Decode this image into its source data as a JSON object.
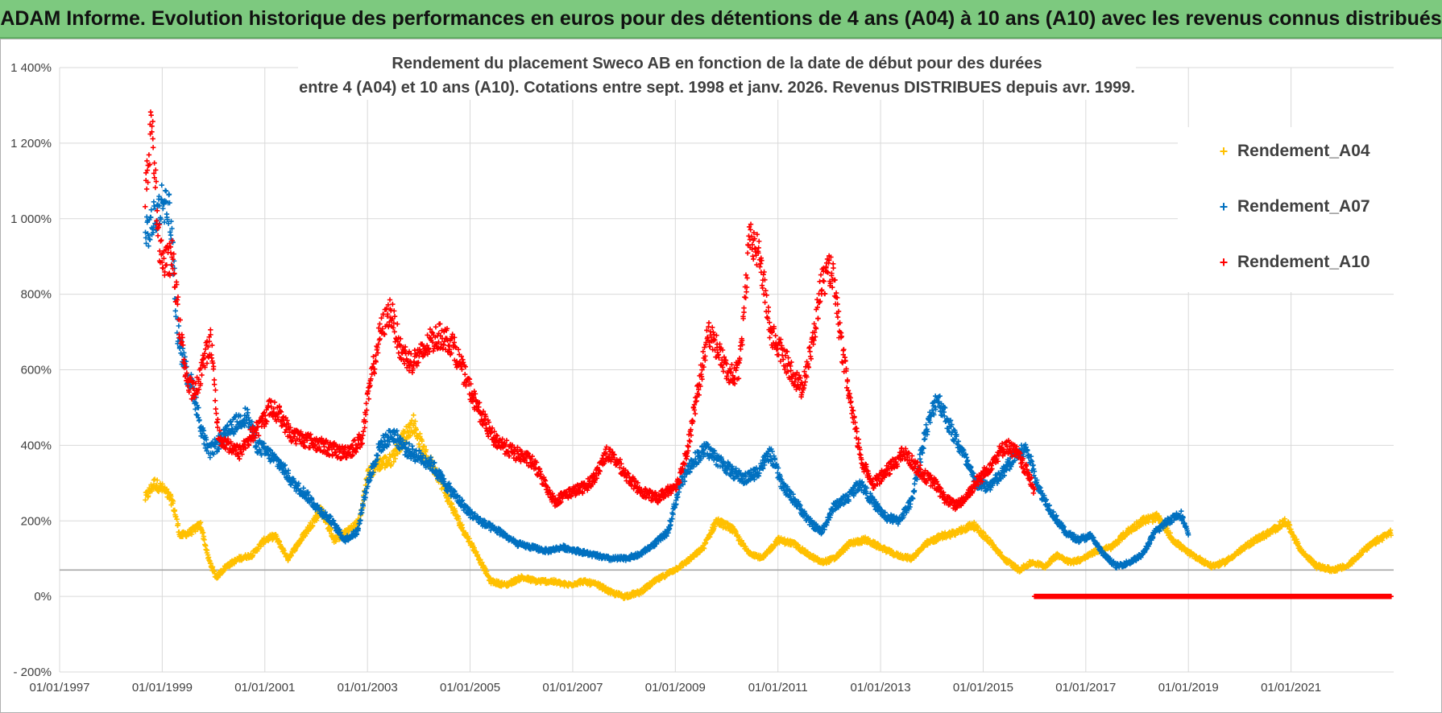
{
  "banner": {
    "title": "ADAM Informe. Evolution historique des performances en euros pour des détentions de 4 ans (A04) à 10 ans (A10) avec les revenus connus distribués"
  },
  "chart_data": {
    "type": "scatter",
    "title_line1": "Rendement du placement Sweco AB en fonction de la date de début pour des durées",
    "title_line2": "entre 4 (A04) et 10 ans (A10).  Cotations entre sept. 1998 et janv. 2026. Revenus DISTRIBUES depuis avr. 1999.",
    "xlabel": "",
    "ylabel": "",
    "xlim": [
      1997.0,
      2023.0
    ],
    "ylim": [
      -200,
      1400
    ],
    "y_ticks": [
      {
        "value": 1400,
        "label": "1 400%"
      },
      {
        "value": 1200,
        "label": "1 200%"
      },
      {
        "value": 1000,
        "label": "1 000%"
      },
      {
        "value": 800,
        "label": "800%"
      },
      {
        "value": 600,
        "label": "600%"
      },
      {
        "value": 400,
        "label": "400%"
      },
      {
        "value": 200,
        "label": "200%"
      },
      {
        "value": 0,
        "label": "0%"
      },
      {
        "value": -200,
        "label": "- 200%"
      }
    ],
    "x_ticks": [
      {
        "value": 1997.0,
        "label": "01/01/1997"
      },
      {
        "value": 1999.0,
        "label": "01/01/1999"
      },
      {
        "value": 2001.0,
        "label": "01/01/2001"
      },
      {
        "value": 2003.0,
        "label": "01/01/2003"
      },
      {
        "value": 2005.0,
        "label": "01/01/2005"
      },
      {
        "value": 2007.0,
        "label": "01/01/2007"
      },
      {
        "value": 2009.0,
        "label": "01/01/2009"
      },
      {
        "value": 2011.0,
        "label": "01/01/2011"
      },
      {
        "value": 2013.0,
        "label": "01/01/2013"
      },
      {
        "value": 2015.0,
        "label": "01/01/2015"
      },
      {
        "value": 2017.0,
        "label": "01/01/2017"
      },
      {
        "value": 2019.0,
        "label": "01/01/2019"
      },
      {
        "value": 2021.0,
        "label": "01/01/2021"
      }
    ],
    "reference_line": 70,
    "grid": true,
    "legend_position": "top-right",
    "series": [
      {
        "name": "Rendement_A04",
        "color": "#ffc000",
        "x": [
          1998.67,
          1998.85,
          1999.05,
          1999.2,
          1999.35,
          1999.55,
          1999.75,
          1999.9,
          2000.05,
          2000.25,
          2000.5,
          2000.75,
          2001.0,
          2001.2,
          2001.45,
          2001.7,
          2001.85,
          2002.1,
          2002.35,
          2002.6,
          2002.85,
          2003.0,
          2003.2,
          2003.45,
          2003.7,
          2003.9,
          2004.1,
          2004.35,
          2004.6,
          2004.85,
          2005.1,
          2005.4,
          2005.7,
          2006.0,
          2006.3,
          2006.6,
          2006.9,
          2007.2,
          2007.5,
          2007.75,
          2008.0,
          2008.3,
          2008.6,
          2008.85,
          2009.1,
          2009.3,
          2009.55,
          2009.8,
          2010.1,
          2010.4,
          2010.7,
          2011.0,
          2011.3,
          2011.6,
          2011.85,
          2012.1,
          2012.4,
          2012.7,
          2013.0,
          2013.3,
          2013.6,
          2013.9,
          2014.2,
          2014.5,
          2014.8,
          2015.1,
          2015.4,
          2015.7,
          2015.95,
          2016.2,
          2016.45,
          2016.7,
          2016.95,
          2017.2,
          2017.5,
          2017.8,
          2018.1,
          2018.4,
          2018.7,
          2018.95,
          2019.2,
          2019.45,
          2019.7,
          2020.0,
          2020.3,
          2020.6,
          2020.9,
          2021.2,
          2021.5,
          2021.8,
          2022.1,
          2022.4,
          2022.7,
          2022.95
        ],
        "y": [
          260,
          300,
          280,
          250,
          160,
          170,
          190,
          100,
          50,
          80,
          100,
          110,
          150,
          160,
          100,
          150,
          180,
          230,
          150,
          170,
          200,
          320,
          350,
          360,
          420,
          460,
          380,
          330,
          250,
          180,
          120,
          40,
          30,
          50,
          40,
          40,
          30,
          40,
          30,
          10,
          0,
          10,
          40,
          60,
          80,
          100,
          130,
          200,
          180,
          120,
          100,
          150,
          140,
          110,
          90,
          100,
          140,
          150,
          130,
          110,
          100,
          140,
          160,
          170,
          190,
          150,
          100,
          70,
          90,
          80,
          110,
          90,
          100,
          120,
          130,
          170,
          200,
          210,
          150,
          120,
          100,
          80,
          90,
          120,
          150,
          170,
          200,
          120,
          80,
          70,
          80,
          120,
          150,
          170
        ]
      },
      {
        "name": "Rendement_A07",
        "color": "#0070c0",
        "x": [
          1998.67,
          1998.85,
          1999.0,
          1999.15,
          1999.3,
          1999.45,
          1999.6,
          1999.75,
          1999.9,
          2000.05,
          2000.25,
          2000.45,
          2000.65,
          2000.85,
          2001.05,
          2001.3,
          2001.55,
          2001.8,
          2002.05,
          2002.3,
          2002.55,
          2002.8,
          2003.0,
          2003.25,
          2003.5,
          2003.75,
          2004.0,
          2004.25,
          2004.5,
          2004.75,
          2005.0,
          2005.3,
          2005.6,
          2005.9,
          2006.2,
          2006.5,
          2006.8,
          2007.1,
          2007.4,
          2007.7,
          2008.0,
          2008.3,
          2008.6,
          2008.85,
          2009.1,
          2009.35,
          2009.6,
          2009.85,
          2010.1,
          2010.35,
          2010.6,
          2010.85,
          2011.1,
          2011.35,
          2011.6,
          2011.85,
          2012.1,
          2012.35,
          2012.6,
          2012.85,
          2013.1,
          2013.35,
          2013.6,
          2013.85,
          2014.1,
          2014.35,
          2014.6,
          2014.85,
          2015.1,
          2015.35,
          2015.6,
          2015.85,
          2016.1,
          2016.35,
          2016.6,
          2016.85,
          2017.1,
          2017.35,
          2017.6,
          2017.85,
          2018.1,
          2018.35,
          2018.6,
          2018.85,
          2019.0
        ],
        "y": [
          950,
          1000,
          1050,
          1020,
          700,
          600,
          550,
          450,
          380,
          400,
          430,
          460,
          480,
          400,
          380,
          350,
          300,
          270,
          230,
          200,
          150,
          170,
          300,
          400,
          430,
          390,
          370,
          350,
          300,
          260,
          220,
          190,
          170,
          140,
          130,
          120,
          130,
          120,
          110,
          100,
          100,
          110,
          140,
          170,
          300,
          360,
          390,
          360,
          330,
          310,
          330,
          380,
          290,
          250,
          200,
          170,
          240,
          260,
          300,
          250,
          210,
          200,
          250,
          420,
          530,
          450,
          380,
          300,
          290,
          320,
          370,
          390,
          280,
          220,
          170,
          150,
          160,
          110,
          80,
          90,
          110,
          170,
          200,
          220,
          160
        ]
      },
      {
        "name": "Rendement_A10",
        "color": "#ff0000",
        "x": [
          1998.67,
          1998.8,
          1998.92,
          1999.05,
          1999.2,
          1999.35,
          1999.5,
          1999.65,
          1999.8,
          1999.95,
          2000.1,
          2000.3,
          2000.5,
          2000.7,
          2000.9,
          2001.1,
          2001.3,
          2001.5,
          2001.7,
          2001.9,
          2002.1,
          2002.3,
          2002.5,
          2002.7,
          2002.9,
          2003.05,
          2003.25,
          2003.45,
          2003.65,
          2003.85,
          2004.05,
          2004.25,
          2004.45,
          2004.65,
          2004.85,
          2005.05,
          2005.25,
          2005.45,
          2005.65,
          2005.85,
          2006.05,
          2006.25,
          2006.45,
          2006.65,
          2006.85,
          2007.05,
          2007.25,
          2007.45,
          2007.65,
          2007.85,
          2008.05,
          2008.25,
          2008.45,
          2008.65,
          2008.85,
          2009.05,
          2009.25,
          2009.45,
          2009.65,
          2009.85,
          2010.05,
          2010.25,
          2010.45,
          2010.65,
          2010.85,
          2011.05,
          2011.25,
          2011.45,
          2011.65,
          2011.85,
          2012.05,
          2012.25,
          2012.45,
          2012.65,
          2012.85,
          2013.05,
          2013.25,
          2013.45,
          2013.65,
          2013.85,
          2014.05,
          2014.25,
          2014.45,
          2014.65,
          2014.85,
          2015.05,
          2015.25,
          2015.45,
          2015.65,
          2015.85,
          2016.0
        ],
        "y": [
          1050,
          1270,
          950,
          880,
          900,
          700,
          560,
          540,
          620,
          680,
          420,
          400,
          380,
          420,
          450,
          500,
          480,
          430,
          420,
          410,
          400,
          390,
          380,
          390,
          420,
          560,
          700,
          760,
          650,
          620,
          640,
          680,
          690,
          670,
          600,
          530,
          470,
          420,
          400,
          380,
          370,
          350,
          300,
          250,
          270,
          280,
          290,
          320,
          380,
          360,
          320,
          290,
          270,
          260,
          280,
          300,
          400,
          550,
          700,
          650,
          580,
          600,
          950,
          900,
          700,
          650,
          600,
          550,
          650,
          830,
          870,
          650,
          480,
          350,
          300,
          320,
          350,
          380,
          350,
          320,
          300,
          260,
          240,
          260,
          300,
          330,
          370,
          400,
          380,
          330,
          280
        ]
      }
    ],
    "a10_zero_range": [
      2016.0,
      2022.95
    ]
  }
}
